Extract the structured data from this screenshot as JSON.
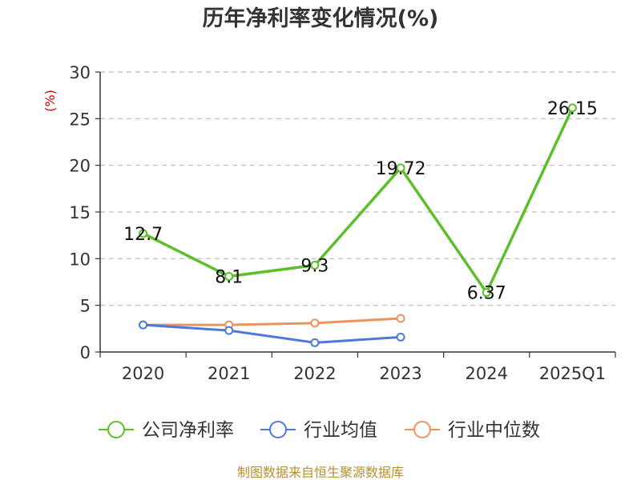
{
  "chart_data": {
    "type": "line",
    "title": "历年净利率变化情况(%)",
    "ylabel": "(%)",
    "ylim": [
      0,
      30
    ],
    "yticks": [
      0,
      5,
      10,
      15,
      20,
      25,
      30
    ],
    "categories": [
      "2020",
      "2021",
      "2022",
      "2023",
      "2024",
      "2025Q1"
    ],
    "grid": true,
    "legend_position": "bottom",
    "series": [
      {
        "name": "公司净利率",
        "color": "#5cbf2a",
        "values": [
          12.7,
          8.1,
          9.3,
          19.72,
          6.37,
          26.15
        ],
        "labels": [
          "12.7",
          "8.1",
          "9.3",
          "19.72",
          "6.37",
          "26.15"
        ]
      },
      {
        "name": "行业均值",
        "color": "#4e79d8",
        "values": [
          2.9,
          2.3,
          1.0,
          1.6,
          null,
          null
        ]
      },
      {
        "name": "行业中位数",
        "color": "#f0925e",
        "values": [
          2.9,
          2.9,
          3.1,
          3.6,
          null,
          null
        ]
      }
    ]
  },
  "footer": {
    "source": "制图数据来自恒生聚源数据库"
  }
}
